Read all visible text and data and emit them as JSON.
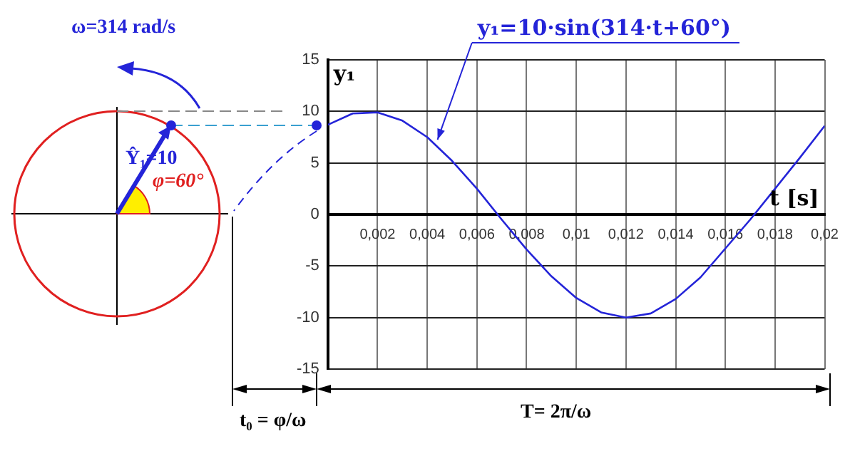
{
  "chart_data": {
    "type": "line",
    "xlabel": "t [s]",
    "ylabel": "y₁",
    "x": [
      0,
      0.001,
      0.002,
      0.003,
      0.004,
      0.005,
      0.006,
      0.007,
      0.008,
      0.009,
      0.01,
      0.011,
      0.012,
      0.013,
      0.014,
      0.015,
      0.016,
      0.017,
      0.018,
      0.019,
      0.02
    ],
    "series": [
      {
        "color": "#2424d8",
        "values": [
          8.7,
          9.8,
          9.9,
          9.1,
          7.5,
          5.2,
          2.5,
          -0.5,
          -3.4,
          -6,
          -8.1,
          -9.5,
          -10,
          -9.6,
          -8.2,
          -6.1,
          -3.3,
          -0.5,
          2.5,
          5.5,
          8.6
        ]
      }
    ],
    "xlim": [
      0,
      0.02
    ],
    "ylim": [
      -15,
      15
    ],
    "xticks": [
      {
        "value": 0,
        "label": null
      },
      {
        "value": 0.002,
        "label": "0,002"
      },
      {
        "value": 0.004,
        "label": "0,004"
      },
      {
        "value": 0.006,
        "label": "0,006"
      },
      {
        "value": 0.008,
        "label": "0,008"
      },
      {
        "value": 0.01,
        "label": "0,01"
      },
      {
        "value": 0.012,
        "label": "0,012"
      },
      {
        "value": 0.014,
        "label": "0,014"
      },
      {
        "value": 0.016,
        "label": "0,016"
      },
      {
        "value": 0.018,
        "label": "0,018"
      },
      {
        "value": 0.02,
        "label": "0,02"
      }
    ],
    "yticks": [
      -15,
      -10,
      -5,
      0,
      5,
      10,
      15
    ],
    "grid": true,
    "legend": false,
    "marker": "none",
    "line_style": "solid",
    "annotations": [
      {
        "text": "y₁=10·sin(314·t+60°)",
        "x": 0.0043,
        "y": 6.7
      },
      "ω=314 rad/s",
      "Ŷ₁=10",
      "φ=60°",
      "t₀ = φ/ω",
      "T= 2π/ω"
    ]
  }
}
